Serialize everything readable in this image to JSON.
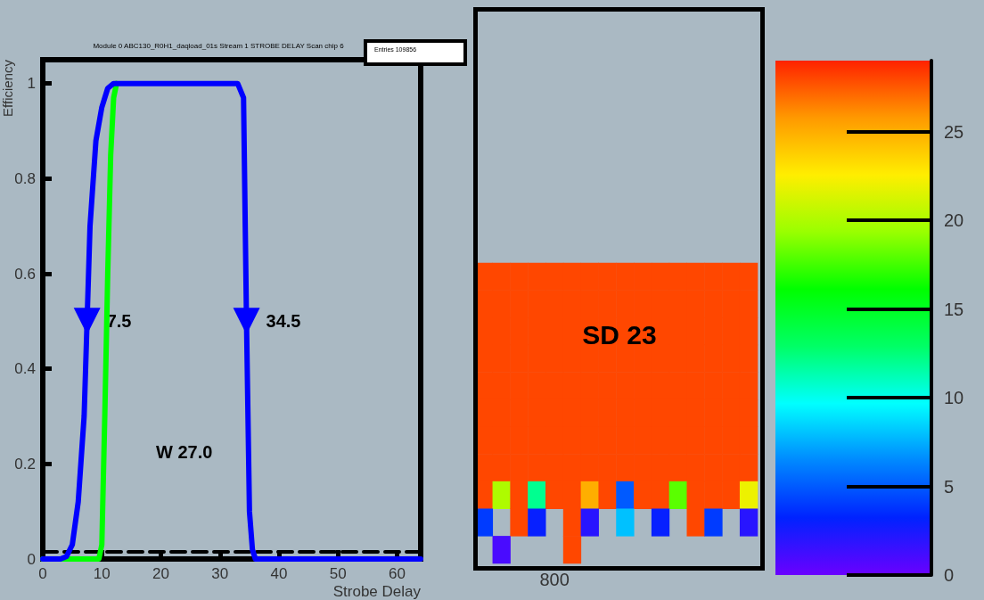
{
  "chart_data": [
    {
      "type": "line",
      "title": "Module 0 ABC130_R0H1_daqload_01s Stream 1 STROBE DELAY Scan chip 6",
      "xlabel": "Strobe Delay",
      "ylabel": "Efficiency",
      "xlim": [
        0,
        64
      ],
      "xticks": [
        0,
        10,
        20,
        30,
        40,
        50,
        60
      ],
      "ylim": [
        0,
        1.05
      ],
      "yticks": [
        0,
        0.2,
        0.4,
        0.6,
        0.8,
        1
      ],
      "grid": false,
      "marker": "none",
      "series": [
        {
          "color": "#0000ff",
          "x": [
            0,
            3,
            4,
            5,
            6,
            7,
            7.5,
            8,
            9,
            10,
            11,
            12,
            20,
            33,
            34,
            34.5,
            35,
            35.5,
            36,
            50,
            64
          ],
          "values": [
            0,
            0,
            0.005,
            0.03,
            0.12,
            0.3,
            0.5,
            0.7,
            0.88,
            0.95,
            0.99,
            1,
            1,
            1,
            0.97,
            0.5,
            0.1,
            0.02,
            0,
            0,
            0
          ]
        },
        {
          "color": "#00ff00",
          "x": [
            0,
            9.5,
            10,
            10.5,
            11,
            11.5,
            12,
            12.5
          ],
          "values": [
            0,
            0,
            0.03,
            0.3,
            0.6,
            0.85,
            0.97,
            1
          ]
        },
        {
          "color": "#000000",
          "line_style": "dashed",
          "x": [
            0,
            64
          ],
          "values": [
            0.015,
            0.015
          ]
        }
      ],
      "annotations": [
        {
          "text": "7.5",
          "x": 7.5,
          "y": 0.5
        },
        {
          "text": "34.5",
          "x": 34.5,
          "y": 0.5
        },
        "W 27.0",
        "Entries 109856"
      ]
    },
    {
      "type": "heatmap",
      "categories": [
        null,
        null,
        null,
        null,
        "800",
        null,
        null,
        null,
        null,
        null,
        null,
        null,
        null,
        null,
        null,
        null
      ],
      "y_categories": [
        null,
        null,
        null,
        null,
        null,
        null,
        null,
        null,
        null,
        null,
        null
      ],
      "cells": [
        [
          28,
          28,
          28,
          28,
          28,
          28,
          28,
          28,
          28,
          28,
          28,
          28,
          28,
          28,
          28,
          28
        ],
        [
          28,
          28,
          28,
          28,
          28,
          28,
          28,
          28,
          28,
          28,
          28,
          28,
          28,
          28,
          28,
          28
        ],
        [
          28,
          28,
          28,
          28,
          28,
          28,
          28,
          28,
          28,
          28,
          28,
          28,
          28,
          28,
          28,
          28
        ],
        [
          28,
          28,
          28,
          28,
          28,
          28,
          28,
          28,
          28,
          28,
          28,
          28,
          28,
          28,
          28,
          28
        ],
        [
          28,
          28,
          28,
          28,
          28,
          28,
          28,
          28,
          28,
          28,
          28,
          28,
          28,
          28,
          28,
          28
        ],
        [
          28,
          28,
          28,
          28,
          28,
          28,
          28,
          28,
          28,
          28,
          28,
          28,
          28,
          28,
          28,
          28
        ],
        [
          28,
          28,
          28,
          28,
          28,
          28,
          28,
          28,
          28,
          28,
          28,
          28,
          28,
          28,
          28,
          28
        ],
        [
          28,
          28,
          28,
          28,
          28,
          28,
          28,
          28,
          28,
          28,
          28,
          28,
          28,
          28,
          28,
          28
        ],
        [
          28,
          20,
          28,
          12,
          28,
          28,
          25,
          28,
          5,
          28,
          28,
          18,
          28,
          28,
          28,
          22
        ],
        [
          4,
          null,
          28,
          3,
          null,
          28,
          2,
          null,
          8,
          null,
          3,
          null,
          28,
          4,
          null,
          2
        ],
        [
          null,
          1,
          null,
          null,
          null,
          28,
          null,
          null,
          null,
          null,
          null,
          null,
          null,
          null,
          null,
          null
        ]
      ],
      "clim": [
        0,
        29
      ],
      "cticks": [
        0,
        5,
        10,
        15,
        20,
        25
      ],
      "annotations": [
        "SD 23"
      ]
    }
  ]
}
